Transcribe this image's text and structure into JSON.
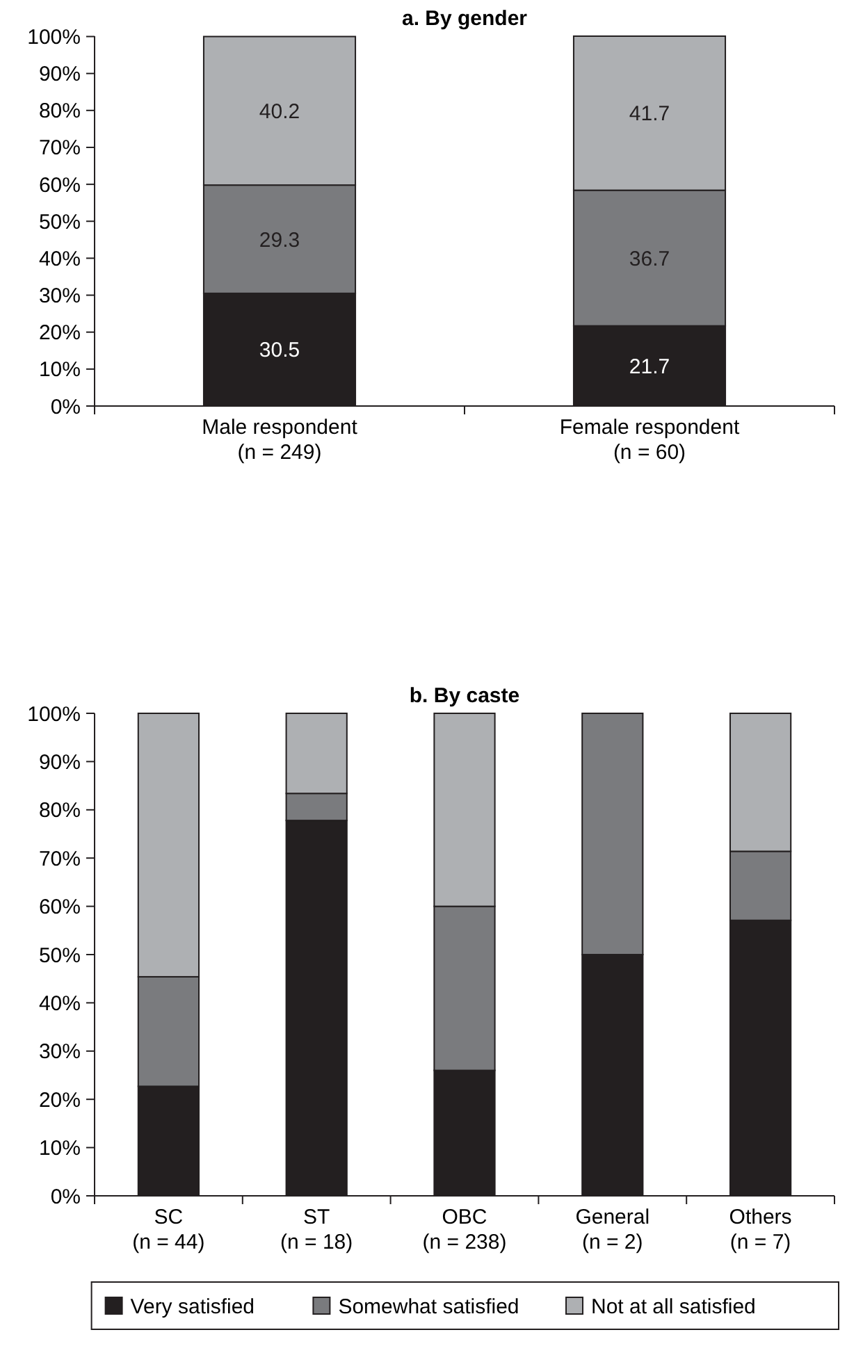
{
  "chart_data": [
    {
      "type": "bar",
      "title": "a. By gender",
      "stacked": true,
      "data_labels": true,
      "categories": [
        "Male respondent\n(n = 249)",
        "Female respondent\n(n = 60)"
      ],
      "ylim": [
        0,
        100.1
      ],
      "yticks": [
        {
          "value": 0,
          "label": "0%"
        },
        {
          "value": 10,
          "label": "10%"
        },
        {
          "value": 20,
          "label": "20%"
        },
        {
          "value": 30,
          "label": "30%"
        },
        {
          "value": 40,
          "label": "40%"
        },
        {
          "value": 50,
          "label": "50%"
        },
        {
          "value": 60,
          "label": "60%"
        },
        {
          "value": 70,
          "label": "70%"
        },
        {
          "value": 80,
          "label": "80%"
        },
        {
          "value": 90,
          "label": "90%"
        },
        {
          "value": 100,
          "label": "100%"
        }
      ],
      "series": [
        {
          "color": "#231f20",
          "values": [
            30.5,
            21.7
          ]
        },
        {
          "color": "#7a7b7e",
          "values": [
            29.3,
            36.7
          ]
        },
        {
          "color": "#aeb0b3",
          "values": [
            40.2,
            41.7
          ]
        }
      ]
    },
    {
      "type": "bar",
      "title": "b. By caste",
      "stacked": true,
      "legend": "bottom",
      "categories": [
        "SC\n(n = 44)",
        "ST\n(n = 18)",
        "OBC\n(n = 238)",
        "General\n(n = 2)",
        "Others\n(n = 7)"
      ],
      "ylim": [
        0,
        100
      ],
      "yticks": [
        {
          "value": 0,
          "label": "0%"
        },
        {
          "value": 10,
          "label": "10%"
        },
        {
          "value": 20,
          "label": "20%"
        },
        {
          "value": 30,
          "label": "30%"
        },
        {
          "value": 40,
          "label": "40%"
        },
        {
          "value": 50,
          "label": "50%"
        },
        {
          "value": 60,
          "label": "60%"
        },
        {
          "value": 70,
          "label": "70%"
        },
        {
          "value": 80,
          "label": "80%"
        },
        {
          "value": 90,
          "label": "90%"
        },
        {
          "value": 100,
          "label": "100%"
        }
      ],
      "series": [
        {
          "name": "Very satisfied",
          "color": "#231f20",
          "values": [
            22.7,
            77.8,
            26,
            50,
            57.1
          ]
        },
        {
          "name": "Somewhat satisfied",
          "color": "#7a7b7e",
          "values": [
            22.7,
            5.6,
            34,
            50,
            14.3
          ]
        },
        {
          "name": "Not at all satisfied",
          "color": "#aeb0b3",
          "values": [
            54.6,
            16.6,
            40,
            0,
            28.6
          ]
        }
      ]
    }
  ]
}
